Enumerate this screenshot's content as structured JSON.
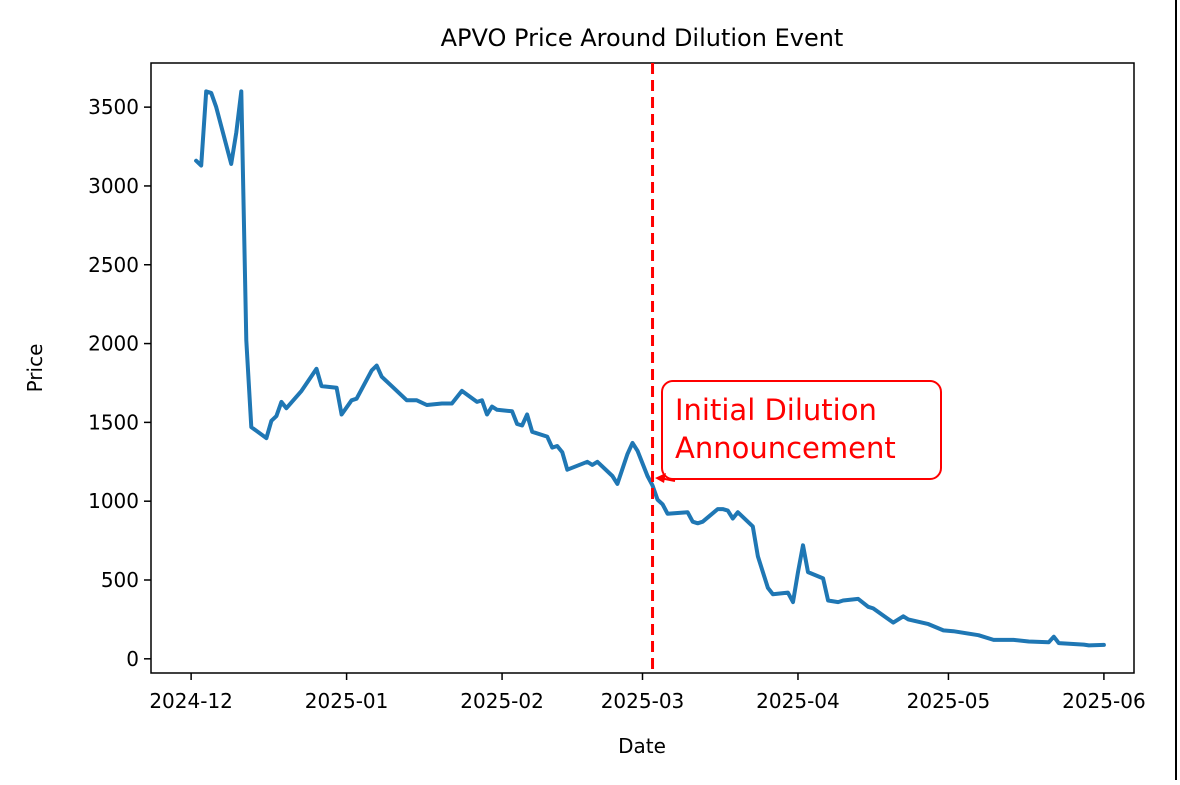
{
  "chart_data": {
    "type": "line",
    "title": "APVO Price Around Dilution Event",
    "xlabel": "Date",
    "ylabel": "Price",
    "x_ticks": [
      "2024-12",
      "2025-01",
      "2025-02",
      "2025-03",
      "2025-04",
      "2025-05",
      "2025-06"
    ],
    "y_ticks": [
      "0",
      "500",
      "1000",
      "1500",
      "2000",
      "2500",
      "3000",
      "3500"
    ],
    "x_range_days": [
      -8,
      188
    ],
    "ylim": [
      -90,
      3780
    ],
    "grid": false,
    "colors": {
      "line": "#1f77b4",
      "event": "#ff0000",
      "annotation": "#ff0000"
    },
    "series": [
      {
        "name": "APVO",
        "points": [
          [
            1,
            3160
          ],
          [
            2,
            3130
          ],
          [
            3,
            3600
          ],
          [
            4,
            3590
          ],
          [
            5,
            3500
          ],
          [
            8,
            3140
          ],
          [
            9,
            3340
          ],
          [
            10,
            3600
          ],
          [
            11,
            2020
          ],
          [
            12,
            1470
          ],
          [
            15,
            1400
          ],
          [
            16,
            1510
          ],
          [
            17,
            1540
          ],
          [
            18,
            1630
          ],
          [
            19,
            1590
          ],
          [
            22,
            1700
          ],
          [
            25,
            1840
          ],
          [
            26,
            1730
          ],
          [
            29,
            1720
          ],
          [
            30,
            1550
          ],
          [
            32,
            1640
          ],
          [
            33,
            1650
          ],
          [
            36,
            1830
          ],
          [
            37,
            1860
          ],
          [
            38,
            1790
          ],
          [
            40,
            1730
          ],
          [
            43,
            1640
          ],
          [
            45,
            1640
          ],
          [
            47,
            1610
          ],
          [
            50,
            1620
          ],
          [
            52,
            1620
          ],
          [
            54,
            1700
          ],
          [
            57,
            1630
          ],
          [
            58,
            1640
          ],
          [
            59,
            1550
          ],
          [
            60,
            1600
          ],
          [
            61,
            1580
          ],
          [
            64,
            1570
          ],
          [
            65,
            1490
          ],
          [
            66,
            1480
          ],
          [
            67,
            1550
          ],
          [
            68,
            1440
          ],
          [
            71,
            1410
          ],
          [
            72,
            1340
          ],
          [
            73,
            1350
          ],
          [
            74,
            1310
          ],
          [
            75,
            1200
          ],
          [
            79,
            1250
          ],
          [
            80,
            1230
          ],
          [
            81,
            1250
          ],
          [
            84,
            1160
          ],
          [
            85,
            1110
          ],
          [
            87,
            1300
          ],
          [
            88,
            1370
          ],
          [
            89,
            1320
          ],
          [
            91,
            1160
          ],
          [
            92,
            1100
          ],
          [
            93,
            1010
          ],
          [
            94,
            980
          ],
          [
            95,
            920
          ],
          [
            99,
            930
          ],
          [
            100,
            870
          ],
          [
            101,
            860
          ],
          [
            102,
            870
          ],
          [
            105,
            950
          ],
          [
            106,
            950
          ],
          [
            107,
            940
          ],
          [
            108,
            890
          ],
          [
            109,
            930
          ],
          [
            112,
            840
          ],
          [
            113,
            650
          ],
          [
            115,
            450
          ],
          [
            116,
            410
          ],
          [
            119,
            420
          ],
          [
            120,
            360
          ],
          [
            121,
            550
          ],
          [
            122,
            720
          ],
          [
            123,
            550
          ],
          [
            126,
            510
          ],
          [
            127,
            370
          ],
          [
            129,
            360
          ],
          [
            130,
            370
          ],
          [
            133,
            380
          ],
          [
            135,
            330
          ],
          [
            136,
            320
          ],
          [
            140,
            230
          ],
          [
            142,
            270
          ],
          [
            143,
            250
          ],
          [
            147,
            220
          ],
          [
            150,
            180
          ],
          [
            152,
            175
          ],
          [
            157,
            150
          ],
          [
            160,
            120
          ],
          [
            164,
            120
          ],
          [
            167,
            110
          ],
          [
            171,
            105
          ],
          [
            172,
            140
          ],
          [
            173,
            100
          ],
          [
            178,
            90
          ],
          [
            179,
            85
          ],
          [
            182,
            88
          ]
        ]
      }
    ],
    "event": {
      "day": 92,
      "label_line1": "Initial Dilution",
      "label_line2": "Announcement",
      "arrow_point_price": 1150
    }
  }
}
